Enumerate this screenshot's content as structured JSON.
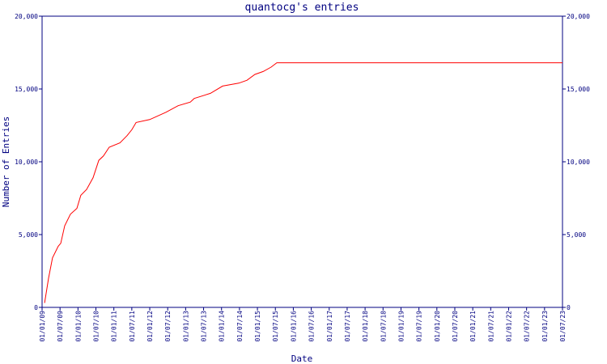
{
  "chart_data": {
    "type": "line",
    "title": "quantocg's entries",
    "xlabel": "Date",
    "ylabel": "Number of Entries",
    "x": [
      2009.07,
      2009.18,
      2009.29,
      2009.45,
      2009.52,
      2009.63,
      2009.79,
      2009.97,
      2010.08,
      2010.24,
      2010.42,
      2010.58,
      2010.71,
      2010.87,
      2011.17,
      2011.37,
      2011.5,
      2011.62,
      2012.0,
      2012.45,
      2012.79,
      2013.13,
      2013.24,
      2013.69,
      2014.03,
      2014.48,
      2014.71,
      2014.93,
      2015.16,
      2015.38,
      2015.54,
      2023.5
    ],
    "series": [
      {
        "color": "#ff0000",
        "values": [
          300,
          2000,
          3400,
          4200,
          4400,
          5600,
          6400,
          6800,
          7700,
          8100,
          8900,
          10100,
          10400,
          11000,
          11300,
          11800,
          12200,
          12700,
          12900,
          13400,
          13850,
          14100,
          14350,
          14700,
          15200,
          15400,
          15600,
          16000,
          16200,
          16500,
          16800,
          16800
        ]
      }
    ],
    "xlim": [
      2009,
      2023.5
    ],
    "xticks": [
      {
        "value": 2009,
        "label": "01/01/09"
      },
      {
        "value": 2009.5,
        "label": "01/07/09"
      },
      {
        "value": 2010,
        "label": "01/01/10"
      },
      {
        "value": 2010.5,
        "label": "01/07/10"
      },
      {
        "value": 2011,
        "label": "01/01/11"
      },
      {
        "value": 2011.5,
        "label": "01/07/11"
      },
      {
        "value": 2012,
        "label": "01/01/12"
      },
      {
        "value": 2012.5,
        "label": "01/07/12"
      },
      {
        "value": 2013,
        "label": "01/01/13"
      },
      {
        "value": 2013.5,
        "label": "01/07/13"
      },
      {
        "value": 2014,
        "label": "01/01/14"
      },
      {
        "value": 2014.5,
        "label": "01/07/14"
      },
      {
        "value": 2015,
        "label": "01/01/15"
      },
      {
        "value": 2015.5,
        "label": "01/07/15"
      },
      {
        "value": 2016,
        "label": "01/01/16"
      },
      {
        "value": 2016.5,
        "label": "01/07/16"
      },
      {
        "value": 2017,
        "label": "01/01/17"
      },
      {
        "value": 2017.5,
        "label": "01/07/17"
      },
      {
        "value": 2018,
        "label": "01/01/18"
      },
      {
        "value": 2018.5,
        "label": "01/07/18"
      },
      {
        "value": 2019,
        "label": "01/01/19"
      },
      {
        "value": 2019.5,
        "label": "01/07/19"
      },
      {
        "value": 2020,
        "label": "01/01/20"
      },
      {
        "value": 2020.5,
        "label": "01/07/20"
      },
      {
        "value": 2021,
        "label": "01/01/21"
      },
      {
        "value": 2021.5,
        "label": "01/07/21"
      },
      {
        "value": 2022,
        "label": "01/01/22"
      },
      {
        "value": 2022.5,
        "label": "01/07/22"
      },
      {
        "value": 2023,
        "label": "01/01/23"
      },
      {
        "value": 2023.5,
        "label": "01/07/23"
      }
    ],
    "ylim": [
      0,
      20000
    ],
    "yticks": [
      0,
      {
        "value": 5000,
        "label": "5,000"
      },
      {
        "value": 10000,
        "label": "10,000"
      },
      {
        "value": 15000,
        "label": "15,000"
      },
      {
        "value": 20000,
        "label": "20,000"
      }
    ],
    "axis_color": "#000080"
  }
}
